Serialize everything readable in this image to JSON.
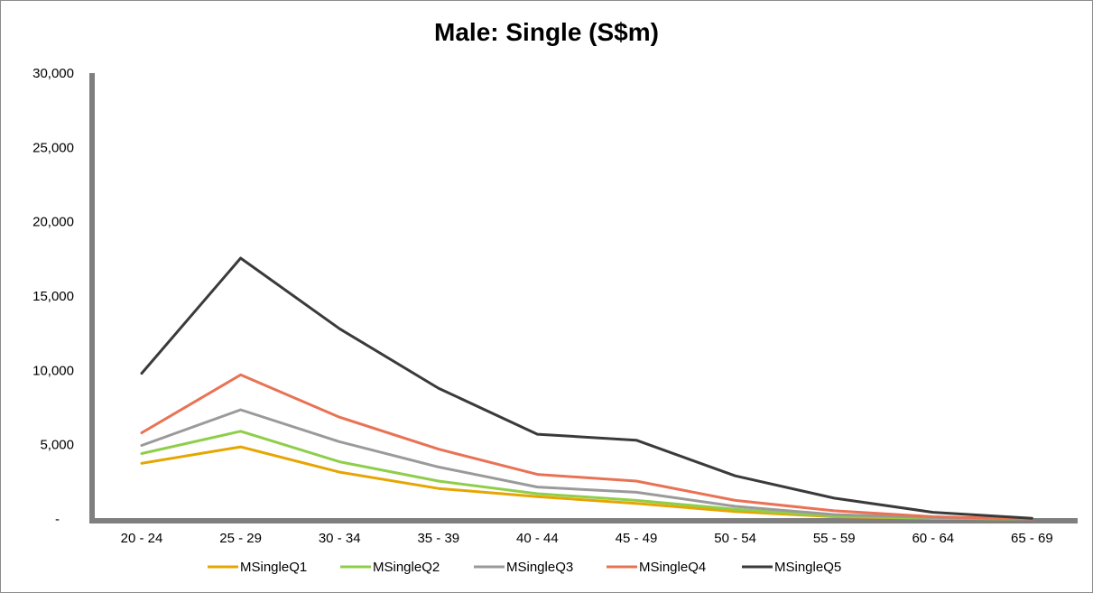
{
  "chart_data": {
    "type": "line",
    "title": "Male: Single (S$m)",
    "xlabel": "",
    "ylabel": "",
    "categories": [
      "20 - 24",
      "25 - 29",
      "30 - 34",
      "35 - 39",
      "40 - 44",
      "45 - 49",
      "50 - 54",
      "55 - 59",
      "60 - 64",
      "65 - 69"
    ],
    "y_ticks": [
      "-",
      "5,000",
      "10,000",
      "15,000",
      "20,000",
      "25,000",
      "30,000"
    ],
    "ylim": [
      0,
      30000
    ],
    "grid": false,
    "legend": "bottom",
    "series": [
      {
        "name": "MSingleQ1",
        "color": "#e6a500",
        "values": [
          3750,
          4850,
          3150,
          2050,
          1500,
          1050,
          500,
          150,
          50,
          0
        ]
      },
      {
        "name": "MSingleQ2",
        "color": "#8fce4a",
        "values": [
          4400,
          5900,
          3850,
          2550,
          1700,
          1250,
          650,
          200,
          50,
          0
        ]
      },
      {
        "name": "MSingleQ3",
        "color": "#9a9a9a",
        "values": [
          4950,
          7350,
          5200,
          3500,
          2150,
          1800,
          850,
          300,
          100,
          0
        ]
      },
      {
        "name": "MSingleQ4",
        "color": "#e97254",
        "values": [
          5800,
          9700,
          6850,
          4700,
          3000,
          2550,
          1250,
          550,
          150,
          0
        ]
      },
      {
        "name": "MSingleQ5",
        "color": "#3a3a3a",
        "values": [
          9800,
          17550,
          12800,
          8800,
          5700,
          5300,
          2900,
          1400,
          450,
          50
        ]
      }
    ]
  }
}
